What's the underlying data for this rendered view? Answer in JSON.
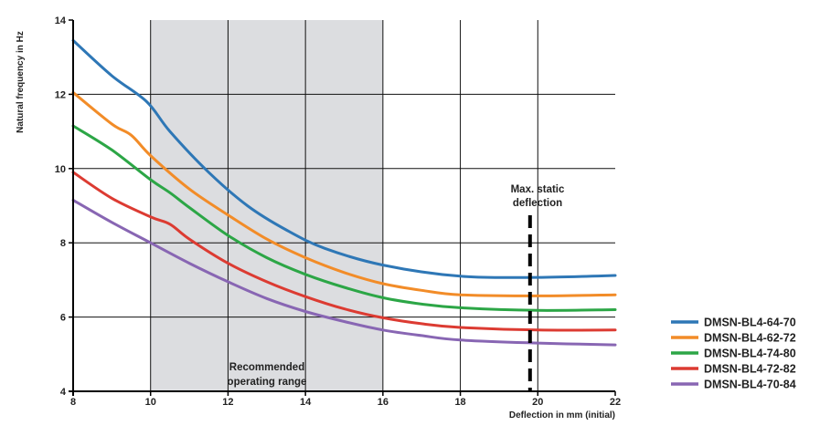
{
  "chart_data": {
    "type": "line",
    "title": "",
    "xlabel": "Deflection in mm (initial)",
    "ylabel": "Natural frequency in Hz",
    "xlim": [
      8,
      22
    ],
    "ylim": [
      4,
      14
    ],
    "x_ticks": [
      "8",
      "10",
      "12",
      "14",
      "16",
      "18",
      "20",
      "22"
    ],
    "y_ticks": [
      "4",
      "6",
      "8",
      "10",
      "12",
      "14"
    ],
    "grid": true,
    "legend_position": "right",
    "shaded_region": {
      "x_range": [
        10,
        16
      ],
      "label_line1": "Recommended",
      "label_line2": "operating range"
    },
    "vertical_marker": {
      "x": 19.8,
      "label_line1": "Max. static",
      "label_line2": "deflection"
    },
    "series": [
      {
        "name": "DMSN-BL4-64-70",
        "color": "#2e77b6",
        "x": [
          8,
          9,
          9.9,
          10.5,
          11.5,
          12.5,
          13.5,
          14.5,
          16,
          18,
          20,
          22
        ],
        "y": [
          13.45,
          12.5,
          11.8,
          11.0,
          9.9,
          9.0,
          8.35,
          7.85,
          7.4,
          7.1,
          7.07,
          7.12
        ]
      },
      {
        "name": "DMSN-BL4-62-72",
        "color": "#f28c28",
        "x": [
          8,
          9,
          9.5,
          10,
          11,
          12,
          13,
          14,
          15,
          16,
          17,
          18,
          20,
          22
        ],
        "y": [
          12.05,
          11.2,
          10.9,
          10.35,
          9.45,
          8.75,
          8.1,
          7.6,
          7.2,
          6.9,
          6.72,
          6.6,
          6.57,
          6.6
        ]
      },
      {
        "name": "DMSN-BL4-74-80",
        "color": "#2ca646",
        "x": [
          8,
          9,
          10,
          10.5,
          11,
          12,
          13,
          14,
          15,
          16,
          17,
          18,
          20,
          22
        ],
        "y": [
          11.15,
          10.5,
          9.7,
          9.35,
          8.95,
          8.2,
          7.6,
          7.15,
          6.8,
          6.52,
          6.35,
          6.25,
          6.18,
          6.2
        ]
      },
      {
        "name": "DMSN-BL4-72-82",
        "color": "#dc3b32",
        "x": [
          8,
          9,
          10,
          10.5,
          11,
          12,
          13,
          14,
          15,
          16,
          17,
          18,
          20,
          22
        ],
        "y": [
          9.9,
          9.2,
          8.7,
          8.5,
          8.1,
          7.45,
          6.95,
          6.55,
          6.22,
          5.98,
          5.82,
          5.72,
          5.65,
          5.65
        ]
      },
      {
        "name": "DMSN-BL4-70-84",
        "color": "#8866b3",
        "x": [
          8,
          9,
          10,
          11,
          12,
          13,
          14,
          15,
          16,
          17,
          18,
          20,
          22
        ],
        "y": [
          9.15,
          8.55,
          8.0,
          7.45,
          6.95,
          6.5,
          6.15,
          5.88,
          5.65,
          5.5,
          5.38,
          5.3,
          5.25
        ]
      }
    ]
  }
}
